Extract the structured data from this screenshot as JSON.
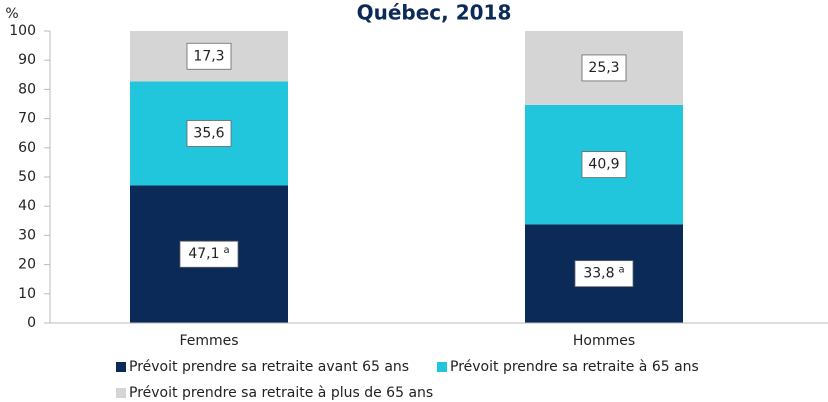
{
  "chart_data": {
    "type": "stacked_bar",
    "title": "Québec, 2018",
    "y_label": "%",
    "categories": [
      "Femmes",
      "Hommes"
    ],
    "series": [
      {
        "name": "Prévoit prendre sa retraite avant 65 ans",
        "color": "#0b2a57",
        "values": [
          47.1,
          33.8
        ],
        "value_labels": [
          "47,1",
          "33,8"
        ],
        "value_label_notes": [
          "a",
          "a"
        ]
      },
      {
        "name": "Prévoit prendre sa retraite à 65 ans",
        "color": "#22c6dc",
        "values": [
          35.6,
          40.9
        ],
        "value_labels": [
          "35,6",
          "40,9"
        ]
      },
      {
        "name": "Prévoit prendre sa retraite à plus de 65 ans",
        "color": "#d5d5d5",
        "values": [
          17.3,
          25.3
        ],
        "value_labels": [
          "17,3",
          "25,3"
        ]
      }
    ],
    "ylim": [
      0,
      100
    ],
    "yticks": [
      0,
      10,
      20,
      30,
      40,
      50,
      60,
      70,
      80,
      90,
      100
    ],
    "grid": false
  }
}
